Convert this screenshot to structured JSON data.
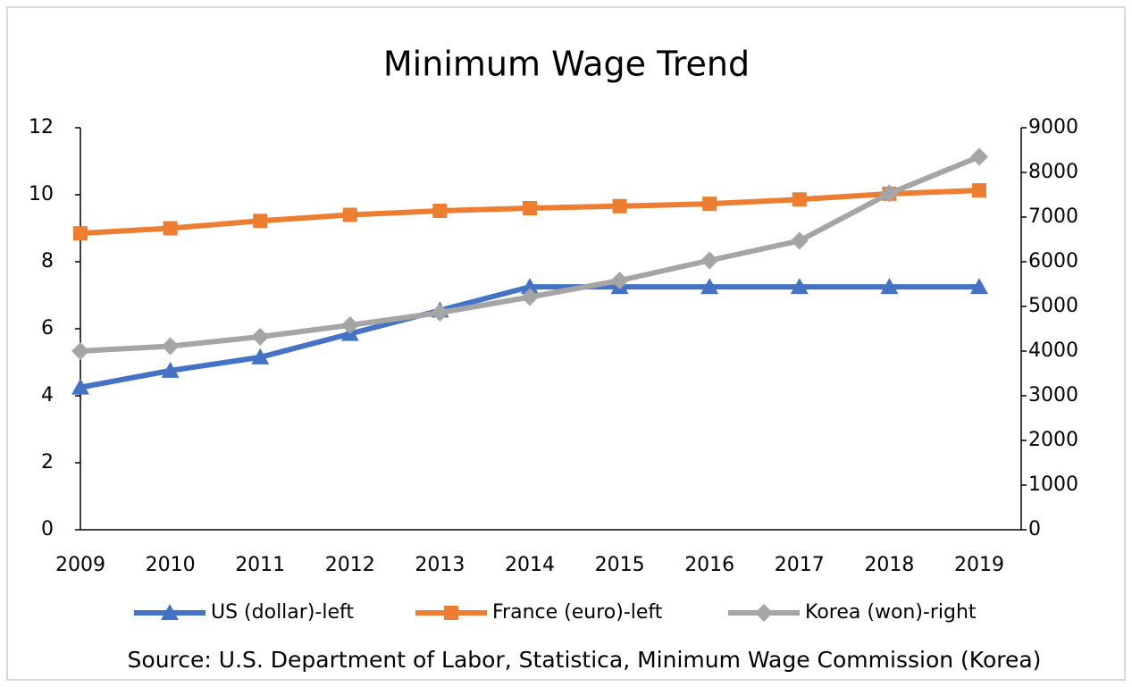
{
  "chart_data": {
    "type": "line",
    "title": "Minimum Wage Trend",
    "categories": [
      "2009",
      "2010",
      "2011",
      "2012",
      "2013",
      "2014",
      "2015",
      "2016",
      "2017",
      "2018",
      "2019"
    ],
    "series": [
      {
        "name": "US (dollar)-left",
        "color": "#4472c4",
        "marker": "triangle",
        "axis": "y",
        "values": [
          4.25,
          4.75,
          5.15,
          5.85,
          6.55,
          7.25,
          7.25,
          7.25,
          7.25,
          7.25,
          7.25
        ]
      },
      {
        "name": "France (euro)-left",
        "color": "#ed7d31",
        "marker": "square",
        "axis": "y",
        "values": [
          8.85,
          9.0,
          9.22,
          9.4,
          9.52,
          9.6,
          9.66,
          9.73,
          9.86,
          10.03,
          10.13
        ]
      },
      {
        "name": "Korea (won)-right",
        "color": "#a5a5a5",
        "marker": "diamond",
        "axis": "y2",
        "values": [
          4000,
          4110,
          4320,
          4580,
          4860,
          5210,
          5580,
          6030,
          6470,
          7530,
          8350
        ]
      }
    ],
    "ylim": [
      0,
      12
    ],
    "yticks": [
      0,
      2,
      4,
      6,
      8,
      10,
      12
    ],
    "y2lim": [
      0,
      9000
    ],
    "y2ticks": [
      0,
      1000,
      2000,
      3000,
      4000,
      5000,
      6000,
      7000,
      8000,
      9000
    ],
    "grid": false,
    "legend": "bottom",
    "source": "Source: U.S. Department of Labor, Statistica, Minimum Wage Commission (Korea)"
  }
}
